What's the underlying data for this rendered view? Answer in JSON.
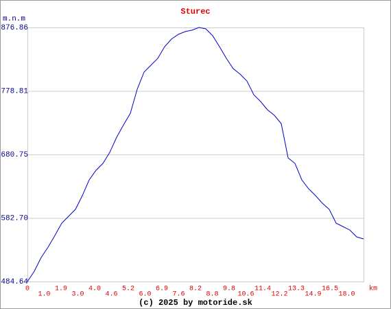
{
  "chart_data": {
    "type": "line",
    "title": "Sturec",
    "y_label": "m.n.m",
    "x_label": "km",
    "footer": "(c) 2025 by motoride.sk",
    "color": "#0000cc",
    "values": [
      484.6,
      500.5,
      521.7,
      537.6,
      555.7,
      574.7,
      585.3,
      596.0,
      617.2,
      641.5,
      656.4,
      667.0,
      684.0,
      707.3,
      726.3,
      744.4,
      781.5,
      808.0,
      818.6,
      829.2,
      847.2,
      858.9,
      866.3,
      870.5,
      872.7,
      876.9,
      874.7,
      864.1,
      847.2,
      829.2,
      813.3,
      804.8,
      794.2,
      773.0,
      762.4,
      749.7,
      741.2,
      728.5,
      675.5,
      667.0,
      641.5,
      627.7,
      617.2,
      605.5,
      596.0,
      574.7,
      569.4,
      564.1,
      553.5,
      550.4
    ],
    "x_tick_labels": [
      "0",
      "1.0",
      "1.9",
      "3.0",
      "4.0",
      "4.6",
      "5.2",
      "6.0",
      "6.9",
      "7.6",
      "8.2",
      "8.8",
      "9.8",
      "10.6",
      "11.4",
      "12.2",
      "13.3",
      "14.9",
      "16.5",
      "18.0"
    ],
    "ylim": [
      484.64,
      876.86
    ],
    "yticks": [
      484.64,
      {
        "value": 582.7,
        "label": "582.70"
      },
      680.75,
      778.81,
      876.86
    ],
    "grid": true
  }
}
